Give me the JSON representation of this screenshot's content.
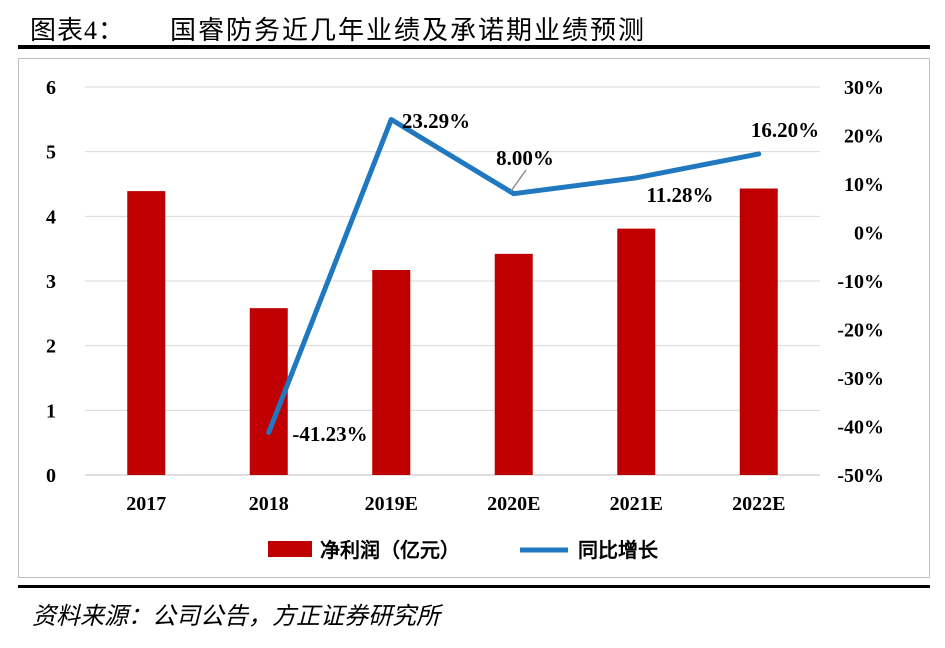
{
  "header": {
    "figure_label": "图表4：",
    "title": "国睿防务近几年业绩及承诺期业绩预测"
  },
  "source": {
    "text": "资料来源：公司公告，方正证券研究所"
  },
  "colors": {
    "bar": "#c00000",
    "line": "#1f78c0",
    "grid": "#d9d9d9",
    "axis": "#bfbfbf"
  },
  "chart_data": {
    "type": "bar",
    "categories": [
      "2017",
      "2018",
      "2019E",
      "2020E",
      "2021E",
      "2022E"
    ],
    "series": [
      {
        "name": "净利润（亿元）",
        "type": "bar",
        "axis": "left",
        "values": [
          4.39,
          2.58,
          3.17,
          3.42,
          3.81,
          4.43
        ]
      },
      {
        "name": "同比增长",
        "type": "line",
        "axis": "right",
        "values": [
          null,
          -41.23,
          23.29,
          8.0,
          11.28,
          16.2
        ],
        "labels": [
          "",
          "-41.23%",
          "23.29%",
          "8.00%",
          "11.28%",
          "16.20%"
        ]
      }
    ],
    "left_axis": {
      "ylim": [
        0,
        6
      ],
      "ticks": [
        "0",
        "1",
        "2",
        "3",
        "4",
        "5",
        "6"
      ]
    },
    "right_axis": {
      "ylim": [
        -50,
        30
      ],
      "ticks": [
        "-50%",
        "-40%",
        "-30%",
        "-20%",
        "-10%",
        "0%",
        "10%",
        "20%",
        "30%"
      ]
    },
    "grid": true,
    "legend_position": "bottom"
  }
}
